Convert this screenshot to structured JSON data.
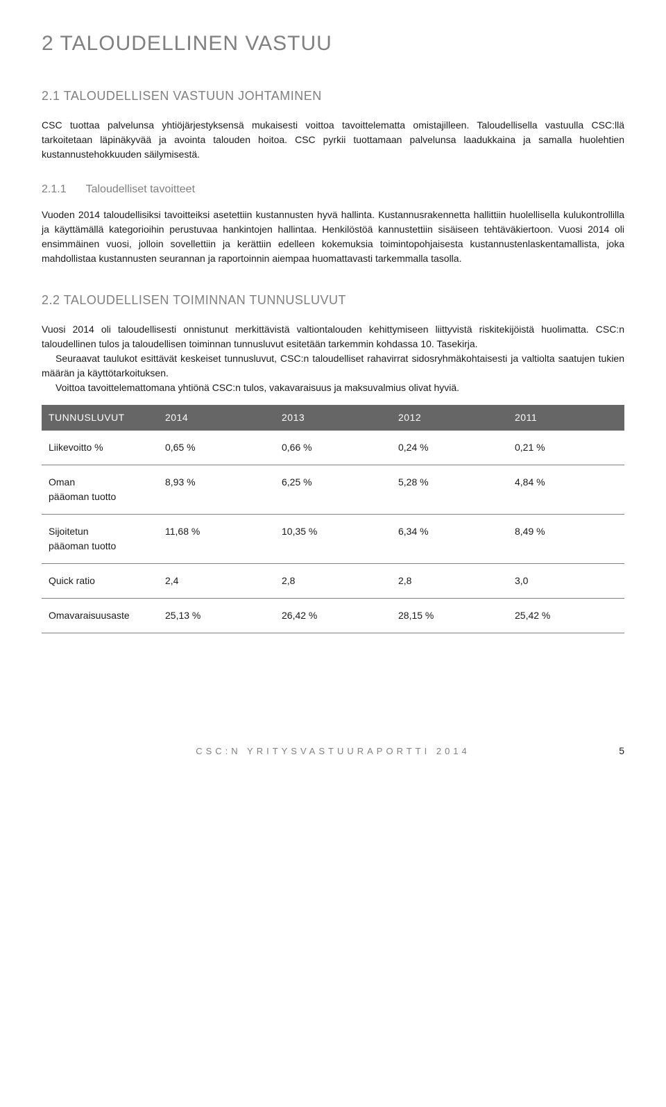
{
  "heading1": "2    TALOUDELLINEN VASTUU",
  "heading2a": "2.1 TALOUDELLISEN VASTUUN JOHTAMINEN",
  "para1": "CSC tuottaa palvelunsa yhtiöjärjestyksensä mukaisesti voittoa tavoittelematta omistajilleen. Taloudellisella vastuulla CSC:llä tarkoitetaan läpinäkyvää ja avointa talouden hoitoa. CSC pyrkii tuottamaan palvelunsa laadukkaina ja samalla huolehtien kustannustehokkuuden säilymisestä.",
  "heading3_num": "2.1.1",
  "heading3_text": "Taloudelliset tavoitteet",
  "para2": "Vuoden 2014 taloudellisiksi tavoitteiksi asetettiin kustannusten hyvä hallinta. Kustannusrakennetta hallittiin huolellisella kulukontrollilla ja käyttämällä kategorioihin perustuvaa hankintojen hallintaa. Henkilöstöä kannustettiin sisäiseen tehtäväkiertoon. Vuosi 2014 oli ensimmäinen vuosi, jolloin sovellettiin ja kerättiin edelleen kokemuksia toimintopohjaisesta kustannustenlaskentamallista, joka mahdollistaa kustannusten seurannan ja raportoinnin aiempaa huomattavasti tarkemmalla tasolla.",
  "heading2b": "2.2 TALOUDELLISEN TOIMINNAN TUNNUSLUVUT",
  "para3": "Vuosi 2014 oli taloudellisesti onnistunut merkittävistä valtiontalouden kehittymiseen liittyvistä riskitekijöistä huolimatta. CSC:n taloudellinen tulos ja taloudellisen toiminnan tunnusluvut esitetään tarkemmin kohdassa 10. Tasekirja.",
  "para4": "Seuraavat taulukot esittävät keskeiset tunnusluvut, CSC:n taloudelliset rahavirrat sidosryhmäkohtaisesti ja valtiolta saatujen tukien määrän ja käyttötarkoituksen.",
  "para5": "Voittoa tavoittelemattomana yhtiönä CSC:n tulos, vakavaraisuus ja maksuvalmius olivat hyviä.",
  "table": {
    "header": [
      "TUNNUSLUVUT",
      "2014",
      "2013",
      "2012",
      "2011"
    ],
    "rows": [
      [
        "Liikevoitto %",
        "0,65 %",
        "0,66 %",
        "0,24 %",
        "0,21 %"
      ],
      [
        "Oman\npääoman tuotto",
        "8,93 %",
        "6,25 %",
        "5,28 %",
        "4,84 %"
      ],
      [
        "Sijoitetun\npääoman tuotto",
        "11,68 %",
        "10,35 %",
        "6,34 %",
        "8,49 %"
      ],
      [
        "Quick ratio",
        "2,4",
        "2,8",
        "2,8",
        "3,0"
      ],
      [
        "Omavaraisuusaste",
        "25,13 %",
        "26,42 %",
        "28,15 %",
        "25,42 %"
      ]
    ]
  },
  "footer_text": "CSC:N YRITYSVASTUURAPORTTI 2014",
  "page_number": "5"
}
